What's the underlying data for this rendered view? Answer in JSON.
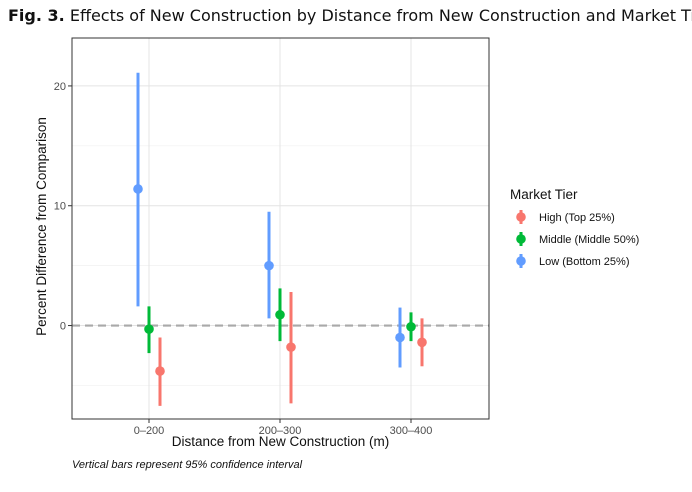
{
  "figure": {
    "label": "Fig. 3.",
    "title": "Effects of New Construction by Distance from New Construction and Market Tier",
    "note": "Vertical bars represent 95% confidence interval"
  },
  "chart_data": {
    "type": "scatter",
    "subtype": "point-range with error bars (dodged)",
    "xlabel": "Distance from New Construction (m)",
    "ylabel": "Percent Difference from Comparison",
    "categories": [
      "0–200",
      "200–300",
      "300–400"
    ],
    "ylim": [
      -7.8,
      24.0
    ],
    "yticks": [
      0,
      10,
      20
    ],
    "grid": true,
    "reference_line": {
      "y": 0,
      "style": "dashed",
      "color": "#A9A9A9"
    },
    "legend": {
      "title": "Market Tier",
      "position": "right"
    },
    "series": [
      {
        "name": "Low (Bottom 25%)",
        "color": "#619CFF",
        "values": [
          11.4,
          5.0,
          -1.0
        ],
        "lower": [
          1.6,
          0.6,
          -3.5
        ],
        "upper": [
          21.1,
          9.5,
          1.5
        ]
      },
      {
        "name": "Middle (Middle 50%)",
        "color": "#00BA38",
        "values": [
          -0.3,
          0.9,
          -0.1
        ],
        "lower": [
          -2.3,
          -1.3,
          -1.3
        ],
        "upper": [
          1.6,
          3.1,
          1.1
        ]
      },
      {
        "name": "High (Top 25%)",
        "color": "#F8766D",
        "values": [
          -3.8,
          -1.8,
          -1.4
        ],
        "lower": [
          -6.7,
          -6.5,
          -3.4
        ],
        "upper": [
          -1.0,
          2.8,
          0.6
        ]
      }
    ],
    "legend_order": [
      "High (Top 25%)",
      "Middle (Middle 50%)",
      "Low (Bottom 25%)"
    ]
  }
}
